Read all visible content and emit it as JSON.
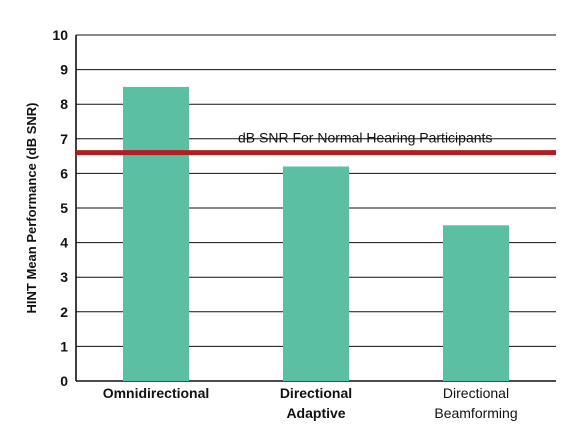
{
  "chart_data": {
    "type": "bar",
    "ylabel": "HINT Mean Performance (dB SNR)",
    "xlabel": "",
    "title": "",
    "ylim": [
      0,
      10
    ],
    "yticks": [
      "0",
      "1",
      "2",
      "3",
      "4",
      "5",
      "6",
      "7",
      "8",
      "9",
      "10"
    ],
    "grid": true,
    "categories": [
      {
        "lines": [
          "Omnidirectional"
        ],
        "bold": true
      },
      {
        "lines": [
          "Directional",
          "Adaptive"
        ],
        "bold": true
      },
      {
        "lines": [
          "Directional",
          "Beamforming"
        ],
        "bold": false
      }
    ],
    "values": [
      8.5,
      6.2,
      4.5
    ],
    "reference_line": {
      "value": 6.6,
      "label": "dB SNR For Normal Hearing Participants"
    },
    "colors": {
      "bar": "#5bbfa3",
      "reference": "#b01e23",
      "grid": "#111111"
    }
  }
}
